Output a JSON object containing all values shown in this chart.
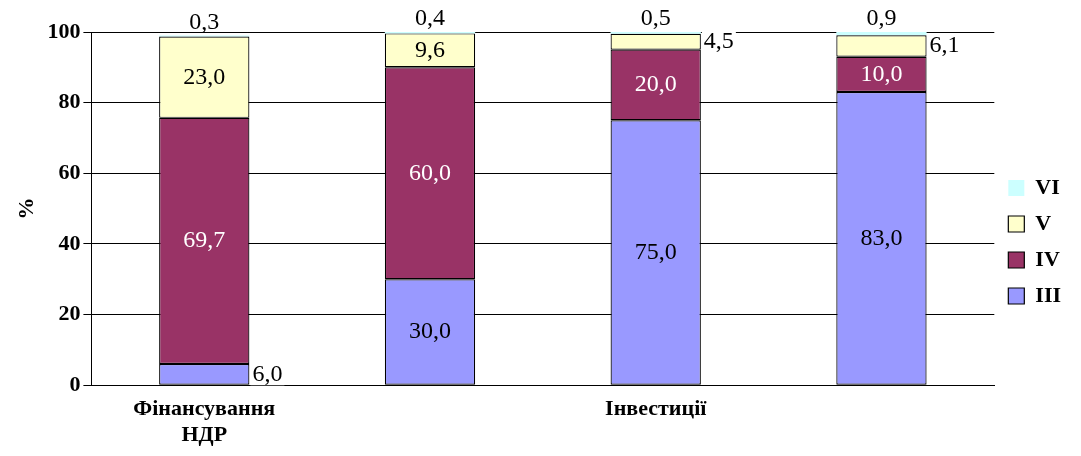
{
  "chart_data": {
    "type": "bar",
    "stacked": true,
    "ylabel": "%",
    "categories": [
      "Фінансування НДР",
      null,
      "Інвестиції",
      null
    ],
    "series": [
      {
        "name": "III",
        "color": "#9999ff",
        "values": [
          6.0,
          30.0,
          75.0,
          83.0
        ],
        "value_labels": [
          "6,0",
          "30,0",
          "75,0",
          "83,0"
        ]
      },
      {
        "name": "IV",
        "color": "#993366",
        "values": [
          69.7,
          60.0,
          20.0,
          10.0
        ],
        "value_labels": [
          "69,7",
          "60,0",
          "20,0",
          "10,0"
        ]
      },
      {
        "name": "V",
        "color": "#ffffcc",
        "values": [
          23.0,
          9.6,
          4.5,
          6.1
        ],
        "value_labels": [
          "23,0",
          "9,6",
          "4,5",
          "6,1"
        ]
      },
      {
        "name": "VI",
        "color": "#ccffff",
        "values": [
          0.3,
          0.4,
          0.5,
          0.9
        ],
        "value_labels": [
          "0,3",
          "0,4",
          "0,5",
          "0,9"
        ]
      }
    ],
    "ylim": [
      0,
      100
    ],
    "yticks": [
      0,
      20,
      40,
      60,
      80,
      100
    ],
    "grid": "y",
    "legend": "right"
  }
}
